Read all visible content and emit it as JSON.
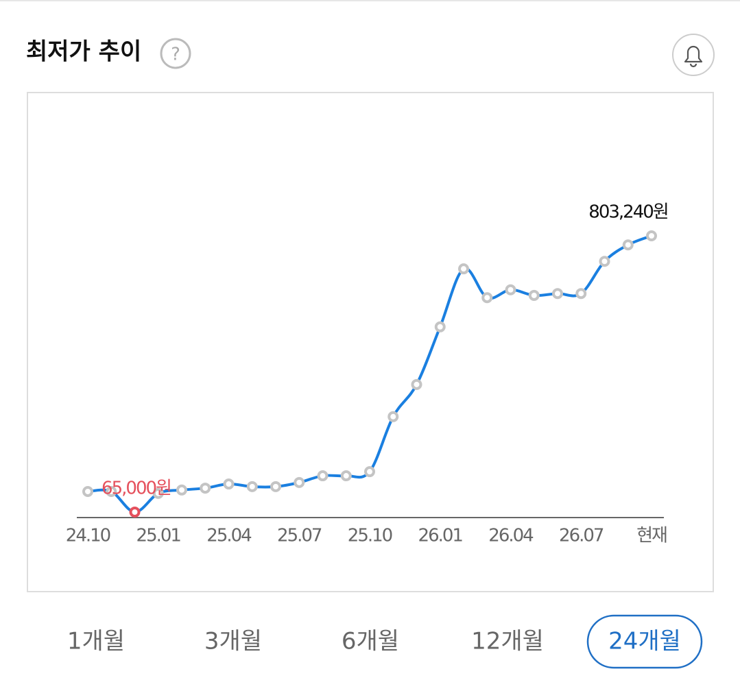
{
  "header": {
    "title": "최저가 추이",
    "help_icon": "?"
  },
  "chart_data": {
    "type": "line",
    "categories": [
      "24.10",
      null,
      null,
      "25.01",
      null,
      null,
      "25.04",
      null,
      null,
      "25.07",
      null,
      null,
      "25.10",
      null,
      null,
      "26.01",
      null,
      null,
      "26.04",
      null,
      null,
      "26.07",
      null,
      null,
      "현재"
    ],
    "values": [
      120000,
      120000,
      65000,
      115000,
      124000,
      129000,
      140000,
      133000,
      133000,
      144000,
      162000,
      162000,
      173000,
      320000,
      406000,
      560000,
      715000,
      638000,
      659000,
      644000,
      649000,
      649000,
      735000,
      779000,
      803240
    ],
    "value_labels": [
      null,
      null,
      "65,000원",
      null,
      null,
      null,
      null,
      null,
      null,
      null,
      null,
      null,
      null,
      null,
      null,
      null,
      null,
      null,
      null,
      null,
      null,
      null,
      null,
      null,
      "803,240원"
    ],
    "color": "#1a7fe0",
    "marker_color": "#c4c4c4",
    "min_color": "#e5505c",
    "max_label_color": "#111111"
  },
  "tabs": [
    "1개월",
    "3개월",
    "6개월",
    "12개월",
    "24개월"
  ],
  "selected_tab": 4
}
